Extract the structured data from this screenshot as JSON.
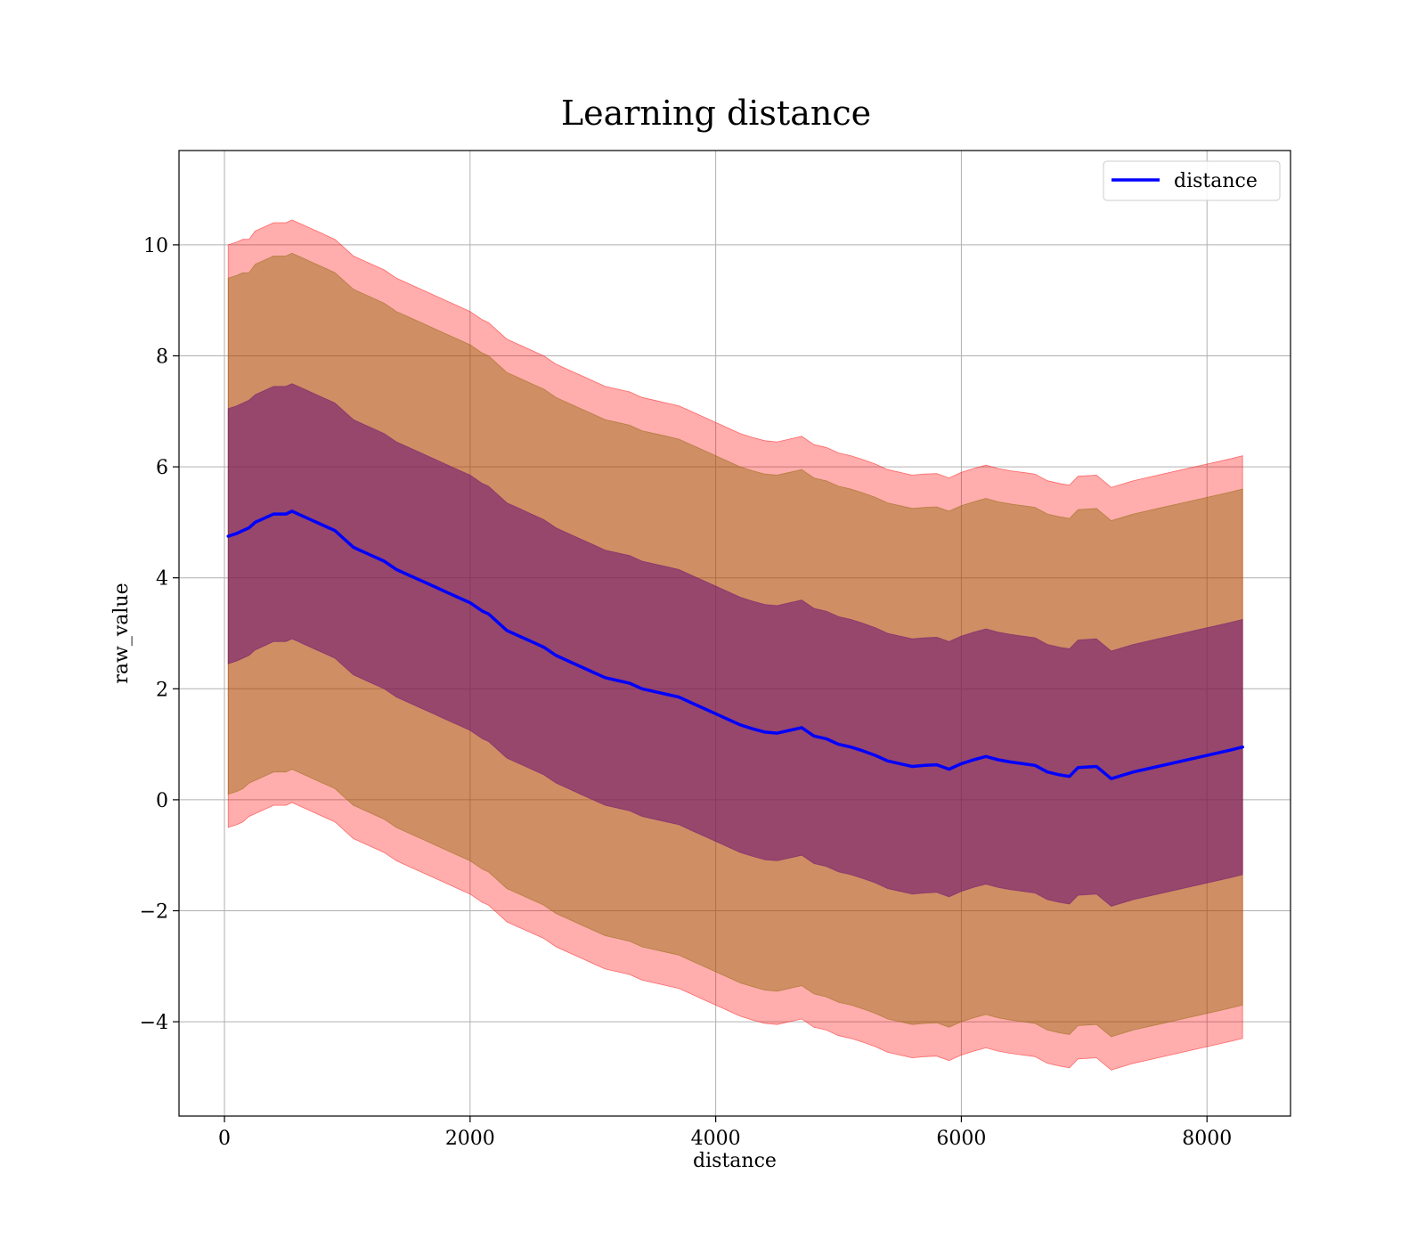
{
  "chart_data": {
    "type": "line",
    "title": "Learning distance",
    "xlabel": "distance",
    "ylabel": "raw_value",
    "xlim": [
      -370,
      8680
    ],
    "ylim": [
      -5.7,
      11.7
    ],
    "xticks": [
      0,
      2000,
      4000,
      6000,
      8000
    ],
    "xtick_labels": [
      "0",
      "2000",
      "4000",
      "6000",
      "8000"
    ],
    "yticks": [
      -4,
      -2,
      0,
      2,
      4,
      6,
      8,
      10
    ],
    "ytick_labels": [
      "−4",
      "−2",
      "0",
      "2",
      "4",
      "6",
      "8",
      "10"
    ],
    "grid": true,
    "legend_position": "upper right",
    "legend": [
      "distance"
    ],
    "colors": {
      "line": "#0000ff",
      "band_outer": "#ff0000",
      "band_mid": "#8c6400",
      "band_inner": "#6a0d73",
      "grid": "#b0b0b0"
    },
    "series": [
      {
        "name": "distance",
        "x": [
          30,
          100,
          150,
          200,
          250,
          300,
          350,
          400,
          450,
          500,
          550,
          600,
          650,
          700,
          750,
          800,
          850,
          900,
          950,
          1000,
          1050,
          1100,
          1150,
          1200,
          1300,
          1400,
          1500,
          1600,
          1700,
          1800,
          1900,
          2000,
          2100,
          2150,
          2200,
          2300,
          2400,
          2500,
          2600,
          2700,
          2800,
          2900,
          3000,
          3100,
          3200,
          3300,
          3400,
          3500,
          3600,
          3700,
          3800,
          3900,
          4000,
          4100,
          4200,
          4300,
          4400,
          4500,
          4600,
          4700,
          4800,
          4900,
          5000,
          5100,
          5200,
          5300,
          5400,
          5500,
          5600,
          5700,
          5800,
          5900,
          6000,
          6100,
          6200,
          6300,
          6400,
          6500,
          6600,
          6700,
          6800,
          6880,
          6950,
          7100,
          7220,
          7400,
          7600,
          7800,
          8000,
          8200,
          8290
        ],
        "values": [
          4.75,
          4.8,
          4.85,
          4.9,
          5.0,
          5.05,
          5.1,
          5.15,
          5.15,
          5.15,
          5.2,
          5.15,
          5.1,
          5.05,
          5.0,
          4.95,
          4.9,
          4.85,
          4.75,
          4.65,
          4.55,
          4.5,
          4.45,
          4.4,
          4.3,
          4.15,
          4.05,
          3.95,
          3.85,
          3.75,
          3.65,
          3.55,
          3.4,
          3.35,
          3.25,
          3.05,
          2.95,
          2.85,
          2.75,
          2.6,
          2.5,
          2.4,
          2.3,
          2.2,
          2.15,
          2.1,
          2.0,
          1.95,
          1.9,
          1.85,
          1.75,
          1.65,
          1.55,
          1.45,
          1.35,
          1.28,
          1.22,
          1.2,
          1.25,
          1.3,
          1.15,
          1.1,
          1.0,
          0.95,
          0.88,
          0.8,
          0.7,
          0.65,
          0.6,
          0.62,
          0.63,
          0.55,
          0.65,
          0.72,
          0.78,
          0.72,
          0.68,
          0.65,
          0.62,
          0.5,
          0.45,
          0.42,
          0.58,
          0.6,
          0.38,
          0.5,
          0.6,
          0.7,
          0.8,
          0.9,
          0.95
        ]
      }
    ],
    "bands": [
      {
        "kind": "outer",
        "lower": [
          -0.5,
          -0.45,
          -0.4,
          -0.3,
          -0.25,
          -0.2,
          -0.15,
          -0.1,
          -0.1,
          -0.1,
          -0.05,
          -0.1,
          -0.15,
          -0.2,
          -0.25,
          -0.3,
          -0.35,
          -0.4,
          -0.5,
          -0.6,
          -0.7,
          -0.75,
          -0.8,
          -0.85,
          -0.95,
          -1.1,
          -1.2,
          -1.3,
          -1.4,
          -1.5,
          -1.6,
          -1.7,
          -1.85,
          -1.9,
          -2.0,
          -2.2,
          -2.3,
          -2.4,
          -2.5,
          -2.65,
          -2.75,
          -2.85,
          -2.95,
          -3.05,
          -3.1,
          -3.15,
          -3.25,
          -3.3,
          -3.35,
          -3.4,
          -3.5,
          -3.6,
          -3.7,
          -3.8,
          -3.9,
          -3.97,
          -4.03,
          -4.05,
          -4.0,
          -3.95,
          -4.1,
          -4.15,
          -4.25,
          -4.3,
          -4.37,
          -4.45,
          -4.55,
          -4.6,
          -4.65,
          -4.63,
          -4.62,
          -4.7,
          -4.6,
          -4.53,
          -4.47,
          -4.53,
          -4.57,
          -4.6,
          -4.63,
          -4.75,
          -4.8,
          -4.83,
          -4.67,
          -4.65,
          -4.87,
          -4.75,
          -4.65,
          -4.55,
          -4.45,
          -4.35,
          -4.3
        ],
        "upper": [
          10.0,
          10.05,
          10.1,
          10.1,
          10.25,
          10.3,
          10.35,
          10.4,
          10.4,
          10.4,
          10.45,
          10.4,
          10.35,
          10.3,
          10.25,
          10.2,
          10.15,
          10.1,
          10.0,
          9.9,
          9.8,
          9.75,
          9.7,
          9.65,
          9.55,
          9.4,
          9.3,
          9.2,
          9.1,
          9.0,
          8.9,
          8.8,
          8.65,
          8.6,
          8.5,
          8.3,
          8.2,
          8.1,
          8.0,
          7.85,
          7.75,
          7.65,
          7.55,
          7.45,
          7.4,
          7.35,
          7.25,
          7.2,
          7.15,
          7.1,
          7.0,
          6.9,
          6.8,
          6.7,
          6.6,
          6.53,
          6.47,
          6.45,
          6.5,
          6.55,
          6.4,
          6.35,
          6.25,
          6.2,
          6.13,
          6.05,
          5.95,
          5.9,
          5.85,
          5.87,
          5.88,
          5.8,
          5.9,
          5.97,
          6.03,
          5.97,
          5.93,
          5.9,
          5.87,
          5.75,
          5.7,
          5.67,
          5.83,
          5.85,
          5.63,
          5.75,
          5.85,
          5.95,
          6.05,
          6.15,
          6.2
        ]
      },
      {
        "kind": "mid",
        "lower": [
          0.1,
          0.15,
          0.2,
          0.3,
          0.35,
          0.4,
          0.45,
          0.5,
          0.5,
          0.5,
          0.55,
          0.5,
          0.45,
          0.4,
          0.35,
          0.3,
          0.25,
          0.2,
          0.1,
          0.0,
          -0.1,
          -0.15,
          -0.2,
          -0.25,
          -0.35,
          -0.5,
          -0.6,
          -0.7,
          -0.8,
          -0.9,
          -1.0,
          -1.1,
          -1.25,
          -1.3,
          -1.4,
          -1.6,
          -1.7,
          -1.8,
          -1.9,
          -2.05,
          -2.15,
          -2.25,
          -2.35,
          -2.45,
          -2.5,
          -2.55,
          -2.65,
          -2.7,
          -2.75,
          -2.8,
          -2.9,
          -3.0,
          -3.1,
          -3.2,
          -3.3,
          -3.37,
          -3.43,
          -3.45,
          -3.4,
          -3.35,
          -3.5,
          -3.55,
          -3.65,
          -3.7,
          -3.77,
          -3.85,
          -3.95,
          -4.0,
          -4.05,
          -4.03,
          -4.02,
          -4.1,
          -4.0,
          -3.93,
          -3.87,
          -3.93,
          -3.97,
          -4.0,
          -4.03,
          -4.15,
          -4.2,
          -4.23,
          -4.07,
          -4.05,
          -4.27,
          -4.15,
          -4.05,
          -3.95,
          -3.85,
          -3.75,
          -3.7
        ],
        "upper": [
          9.4,
          9.45,
          9.5,
          9.5,
          9.65,
          9.7,
          9.75,
          9.8,
          9.8,
          9.8,
          9.85,
          9.8,
          9.75,
          9.7,
          9.65,
          9.6,
          9.55,
          9.5,
          9.4,
          9.3,
          9.2,
          9.15,
          9.1,
          9.05,
          8.95,
          8.8,
          8.7,
          8.6,
          8.5,
          8.4,
          8.3,
          8.2,
          8.05,
          8.0,
          7.9,
          7.7,
          7.6,
          7.5,
          7.4,
          7.25,
          7.15,
          7.05,
          6.95,
          6.85,
          6.8,
          6.75,
          6.65,
          6.6,
          6.55,
          6.5,
          6.4,
          6.3,
          6.2,
          6.1,
          6.0,
          5.93,
          5.87,
          5.85,
          5.9,
          5.95,
          5.8,
          5.75,
          5.65,
          5.6,
          5.53,
          5.45,
          5.35,
          5.3,
          5.25,
          5.27,
          5.28,
          5.2,
          5.3,
          5.37,
          5.43,
          5.37,
          5.33,
          5.3,
          5.27,
          5.15,
          5.1,
          5.07,
          5.23,
          5.25,
          5.03,
          5.15,
          5.25,
          5.35,
          5.45,
          5.55,
          5.6
        ]
      },
      {
        "kind": "inner",
        "lower": [
          2.45,
          2.5,
          2.55,
          2.6,
          2.7,
          2.75,
          2.8,
          2.85,
          2.85,
          2.85,
          2.9,
          2.85,
          2.8,
          2.75,
          2.7,
          2.65,
          2.6,
          2.55,
          2.45,
          2.35,
          2.25,
          2.2,
          2.15,
          2.1,
          2.0,
          1.85,
          1.75,
          1.65,
          1.55,
          1.45,
          1.35,
          1.25,
          1.1,
          1.05,
          0.95,
          0.75,
          0.65,
          0.55,
          0.45,
          0.3,
          0.2,
          0.1,
          0.0,
          -0.1,
          -0.15,
          -0.2,
          -0.3,
          -0.35,
          -0.4,
          -0.45,
          -0.55,
          -0.65,
          -0.75,
          -0.85,
          -0.95,
          -1.02,
          -1.08,
          -1.1,
          -1.05,
          -1.0,
          -1.15,
          -1.2,
          -1.3,
          -1.35,
          -1.42,
          -1.5,
          -1.6,
          -1.65,
          -1.7,
          -1.68,
          -1.67,
          -1.75,
          -1.65,
          -1.58,
          -1.52,
          -1.58,
          -1.62,
          -1.65,
          -1.68,
          -1.8,
          -1.85,
          -1.88,
          -1.72,
          -1.7,
          -1.92,
          -1.8,
          -1.7,
          -1.6,
          -1.5,
          -1.4,
          -1.35
        ],
        "upper": [
          7.05,
          7.1,
          7.15,
          7.2,
          7.3,
          7.35,
          7.4,
          7.45,
          7.45,
          7.45,
          7.5,
          7.45,
          7.4,
          7.35,
          7.3,
          7.25,
          7.2,
          7.15,
          7.05,
          6.95,
          6.85,
          6.8,
          6.75,
          6.7,
          6.6,
          6.45,
          6.35,
          6.25,
          6.15,
          6.05,
          5.95,
          5.85,
          5.7,
          5.65,
          5.55,
          5.35,
          5.25,
          5.15,
          5.05,
          4.9,
          4.8,
          4.7,
          4.6,
          4.5,
          4.45,
          4.4,
          4.3,
          4.25,
          4.2,
          4.15,
          4.05,
          3.95,
          3.85,
          3.75,
          3.65,
          3.58,
          3.52,
          3.5,
          3.55,
          3.6,
          3.45,
          3.4,
          3.3,
          3.25,
          3.18,
          3.1,
          3.0,
          2.95,
          2.9,
          2.92,
          2.93,
          2.85,
          2.95,
          3.02,
          3.08,
          3.02,
          2.98,
          2.95,
          2.92,
          2.8,
          2.75,
          2.72,
          2.88,
          2.9,
          2.68,
          2.8,
          2.9,
          3.0,
          3.1,
          3.2,
          3.25
        ]
      }
    ]
  }
}
